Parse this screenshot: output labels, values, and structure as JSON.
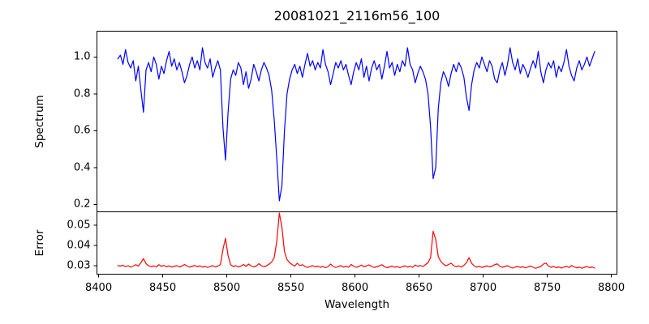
{
  "figure": {
    "background": "#ffffff",
    "frame_color": "#000000"
  },
  "chart_data": {
    "type": "line",
    "title": "20081021_2116m56_100",
    "xlabel": "Wavelength",
    "grid": false,
    "legend": null,
    "xlim": [
      8398.7,
      8804.4
    ],
    "xticks": [
      8400,
      8450,
      8500,
      8550,
      8600,
      8650,
      8700,
      8750,
      8800
    ],
    "xtick_labels": [
      "8400",
      "8450",
      "8500",
      "8550",
      "8600",
      "8650",
      "8700",
      "8750",
      "8800"
    ],
    "x_start": 8415,
    "x_step": 2,
    "n_points": 187,
    "panels": [
      {
        "name": "spectrum",
        "ylabel": "Spectrum",
        "color": "#0000ff",
        "ylim": [
          0.16,
          1.14
        ],
        "yticks": [
          0.2,
          0.4,
          0.6,
          0.8,
          1.0
        ],
        "ytick_labels": [
          "0.2",
          "0.4",
          "0.6",
          "0.8",
          "1.0"
        ]
      },
      {
        "name": "error",
        "ylabel": "Error",
        "color": "#ff0000",
        "ylim": [
          0.0258,
          0.0566
        ],
        "yticks": [
          0.03,
          0.04,
          0.05
        ],
        "ytick_labels": [
          "0.03",
          "0.04",
          "0.05"
        ]
      }
    ],
    "series": [
      {
        "name": "spectrum",
        "panel": "spectrum",
        "color": "#0000ff",
        "values": [
          0.99,
          1.01,
          0.96,
          1.04,
          0.97,
          0.94,
          0.98,
          0.87,
          0.95,
          0.82,
          0.7,
          0.93,
          0.97,
          0.92,
          1.0,
          0.96,
          0.88,
          0.95,
          0.91,
          0.98,
          1.03,
          0.95,
          0.99,
          0.93,
          0.97,
          0.92,
          0.86,
          0.9,
          0.96,
          1.0,
          0.94,
          0.98,
          0.93,
          1.05,
          0.97,
          0.94,
          0.99,
          0.89,
          0.94,
          0.98,
          0.93,
          0.62,
          0.44,
          0.7,
          0.88,
          0.93,
          0.9,
          0.97,
          0.94,
          0.85,
          0.92,
          0.83,
          0.88,
          0.96,
          0.92,
          0.87,
          0.93,
          0.97,
          0.94,
          0.9,
          0.82,
          0.66,
          0.45,
          0.22,
          0.3,
          0.6,
          0.8,
          0.88,
          0.93,
          0.96,
          0.91,
          0.95,
          0.89,
          0.96,
          1.02,
          0.95,
          0.98,
          0.93,
          0.97,
          0.94,
          1.04,
          0.96,
          0.92,
          0.85,
          0.91,
          0.97,
          0.94,
          0.98,
          0.93,
          0.96,
          0.9,
          0.85,
          0.92,
          0.97,
          0.93,
          0.99,
          0.89,
          0.95,
          0.87,
          0.94,
          0.98,
          0.93,
          0.96,
          0.88,
          0.95,
          1.03,
          0.94,
          0.97,
          0.9,
          0.96,
          0.92,
          0.98,
          0.95,
          1.05,
          0.96,
          0.93,
          0.86,
          0.91,
          0.95,
          0.92,
          0.88,
          0.8,
          0.62,
          0.34,
          0.4,
          0.72,
          0.86,
          0.92,
          0.89,
          0.84,
          0.91,
          0.96,
          0.92,
          0.97,
          0.94,
          0.89,
          0.78,
          0.71,
          0.85,
          0.93,
          0.97,
          0.94,
          1.0,
          0.96,
          0.92,
          0.98,
          0.95,
          0.88,
          0.86,
          0.93,
          0.97,
          0.9,
          0.96,
          1.05,
          0.97,
          0.93,
          0.99,
          0.91,
          0.96,
          0.93,
          0.89,
          0.94,
          0.98,
          0.94,
          1.03,
          0.92,
          0.86,
          0.93,
          0.97,
          0.94,
          0.98,
          0.89,
          0.95,
          0.92,
          0.97,
          1.04,
          0.95,
          0.9,
          0.87,
          0.94,
          0.98,
          0.93,
          0.96,
          1.0,
          0.95,
          0.99,
          1.03
        ]
      },
      {
        "name": "error",
        "panel": "error",
        "color": "#ff0000",
        "values": [
          0.03,
          0.0298,
          0.0302,
          0.0295,
          0.03,
          0.0293,
          0.0298,
          0.0305,
          0.0298,
          0.0315,
          0.0335,
          0.031,
          0.03,
          0.0295,
          0.0299,
          0.0294,
          0.0305,
          0.0297,
          0.0301,
          0.0295,
          0.0299,
          0.0293,
          0.0297,
          0.03,
          0.0294,
          0.0298,
          0.0306,
          0.0298,
          0.0293,
          0.0297,
          0.0301,
          0.0295,
          0.0299,
          0.0293,
          0.0297,
          0.0291,
          0.0296,
          0.03,
          0.0294,
          0.0298,
          0.0305,
          0.038,
          0.0435,
          0.035,
          0.0305,
          0.0296,
          0.03,
          0.0294,
          0.0298,
          0.0306,
          0.0297,
          0.0308,
          0.0299,
          0.0294,
          0.0298,
          0.031,
          0.03,
          0.0295,
          0.0299,
          0.0308,
          0.0318,
          0.034,
          0.042,
          0.056,
          0.049,
          0.037,
          0.033,
          0.0315,
          0.0305,
          0.0298,
          0.0312,
          0.03,
          0.0305,
          0.0296,
          0.0291,
          0.0296,
          0.03,
          0.0294,
          0.0298,
          0.0292,
          0.0296,
          0.029,
          0.0295,
          0.0308,
          0.0296,
          0.0291,
          0.0296,
          0.03,
          0.0293,
          0.0297,
          0.0292,
          0.0306,
          0.0297,
          0.0292,
          0.0296,
          0.0303,
          0.0295,
          0.0299,
          0.0304,
          0.0296,
          0.0291,
          0.0295,
          0.0299,
          0.0305,
          0.0295,
          0.029,
          0.0294,
          0.0298,
          0.0292,
          0.0296,
          0.029,
          0.0295,
          0.0299,
          0.0293,
          0.0297,
          0.0292,
          0.0303,
          0.0297,
          0.0301,
          0.0296,
          0.0305,
          0.0315,
          0.034,
          0.047,
          0.043,
          0.0345,
          0.032,
          0.0308,
          0.0299,
          0.0306,
          0.0312,
          0.03,
          0.0295,
          0.0299,
          0.0293,
          0.0302,
          0.0315,
          0.034,
          0.0312,
          0.0299,
          0.0293,
          0.0297,
          0.0291,
          0.0295,
          0.0299,
          0.0294,
          0.0298,
          0.0305,
          0.0309,
          0.0297,
          0.0292,
          0.0296,
          0.03,
          0.0293,
          0.0288,
          0.0293,
          0.0297,
          0.0291,
          0.0295,
          0.0289,
          0.0294,
          0.0298,
          0.0292,
          0.0287,
          0.0292,
          0.0296,
          0.0308,
          0.0313,
          0.0298,
          0.0292,
          0.0296,
          0.029,
          0.0294,
          0.0288,
          0.0293,
          0.0297,
          0.0291,
          0.0301,
          0.0294,
          0.0289,
          0.0293,
          0.0287,
          0.0292,
          0.0296,
          0.029,
          0.0294,
          0.0288
        ]
      }
    ]
  }
}
